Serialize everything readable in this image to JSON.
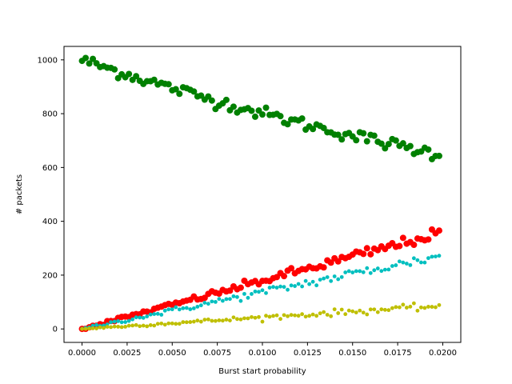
{
  "chart_data": {
    "type": "scatter",
    "title": "",
    "xlabel": "Burst start probability",
    "ylabel": "# packets",
    "xlim": [
      -0.001,
      0.021
    ],
    "ylim": [
      -50,
      1050
    ],
    "xticks": [
      0.0,
      0.0025,
      0.005,
      0.0075,
      0.01,
      0.0125,
      0.015,
      0.0175,
      0.02
    ],
    "xtick_labels": [
      "0.0000",
      "0.0025",
      "0.0050",
      "0.0075",
      "0.0100",
      "0.0125",
      "0.0150",
      "0.0175",
      "0.0200"
    ],
    "yticks": [
      0,
      200,
      400,
      600,
      800,
      1000
    ],
    "ytick_labels": [
      "0",
      "200",
      "400",
      "600",
      "800",
      "1000"
    ],
    "grid": false,
    "legend": false,
    "x_range": [
      0.0,
      0.0198
    ],
    "num_points": 100,
    "series": [
      {
        "color": "#008000",
        "marker_size": "large",
        "y_start": 1000,
        "y_end": 650,
        "trend": "decreasing-curved",
        "noise": 12
      },
      {
        "color": "#ff0000",
        "marker_size": "large",
        "y_start": 0,
        "y_end": 355,
        "trend": "increasing",
        "noise": 10
      },
      {
        "color": "#00bfbf",
        "marker_size": "small",
        "y_start": 0,
        "y_end": 270,
        "trend": "increasing",
        "noise": 10
      },
      {
        "color": "#bfbf00",
        "marker_size": "small",
        "y_start": 0,
        "y_end": 85,
        "trend": "increasing",
        "noise": 6
      }
    ]
  }
}
